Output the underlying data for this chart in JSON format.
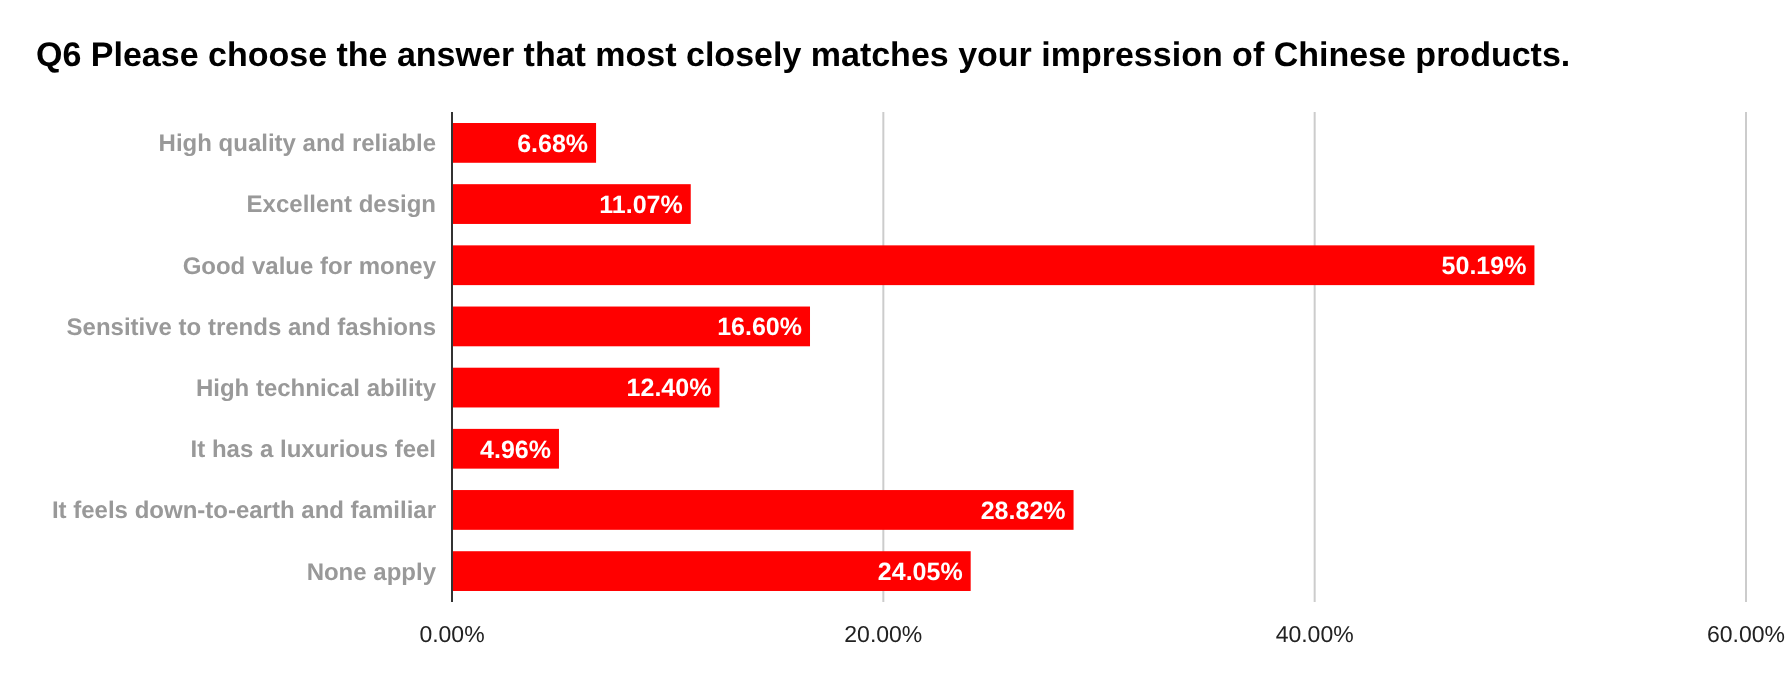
{
  "chart_data": {
    "type": "bar",
    "orientation": "horizontal",
    "title": "Q6 Please choose the answer that most closely matches your impression of Chinese products.",
    "categories": [
      "High quality and reliable",
      "Excellent design",
      "Good value for money",
      "Sensitive to trends and fashions",
      "High technical ability",
      "It has a luxurious feel",
      "It feels down-to-earth and familiar",
      "None apply"
    ],
    "values": [
      6.68,
      11.07,
      50.19,
      16.6,
      12.4,
      4.96,
      28.82,
      24.05
    ],
    "value_labels": [
      "6.68%",
      "11.07%",
      "50.19%",
      "16.60%",
      "12.40%",
      "4.96%",
      "28.82%",
      "24.05%"
    ],
    "color": "#ff0000",
    "xlim": [
      0,
      60
    ],
    "xticks": [
      {
        "value": 0,
        "label": "0.00%"
      },
      {
        "value": 20,
        "label": "20.00%"
      },
      {
        "value": 40,
        "label": "40.00%"
      },
      {
        "value": 60,
        "label": "60.00%"
      }
    ],
    "grid": "x"
  }
}
